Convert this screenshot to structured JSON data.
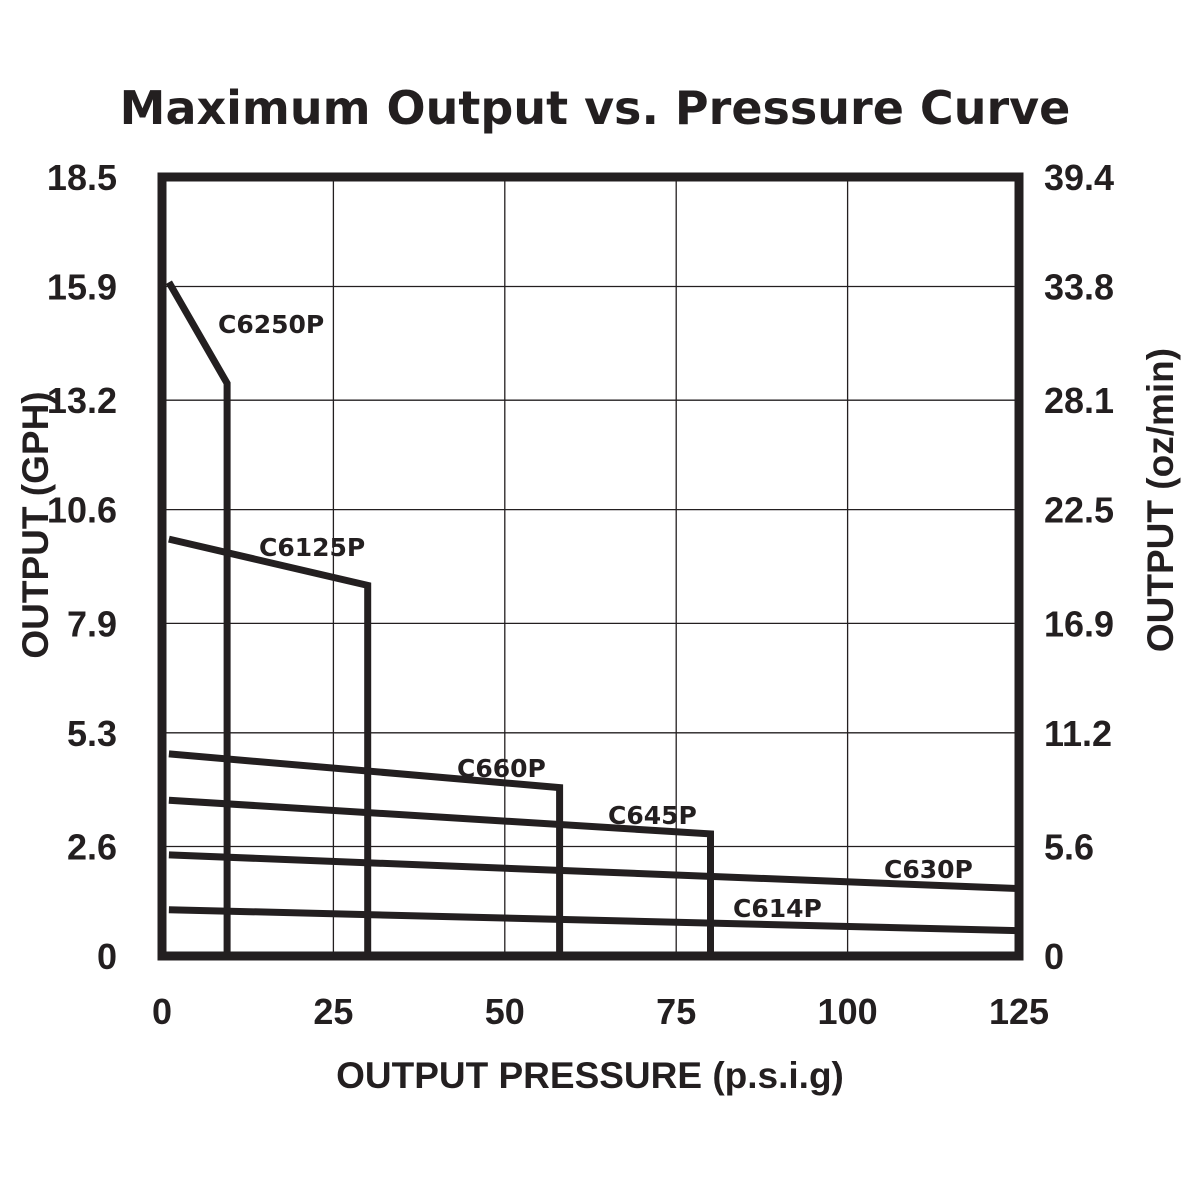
{
  "chart_data": {
    "type": "line",
    "title": "Maximum Output vs. Pressure Curve",
    "xlabel": "OUTPUT PRESSURE  (p.s.i.g)",
    "ylabel": "OUTPUT  (GPH)",
    "ylabel_right": "OUTPUT  (oz/min)",
    "xlim": [
      0,
      125
    ],
    "ylim": [
      0,
      18.5
    ],
    "x_ticks": [
      0,
      25,
      50,
      75,
      100,
      125
    ],
    "x_tick_labels": [
      "0",
      "25",
      "50",
      "75",
      "100",
      "125"
    ],
    "y_ticks": [
      0,
      2.6,
      5.3,
      7.9,
      10.6,
      13.2,
      15.9,
      18.5
    ],
    "y_tick_labels": [
      "0",
      "2.6",
      "5.3",
      "7.9",
      "10.6",
      "13.2",
      "15.9",
      "18.5"
    ],
    "y_right_tick_labels": [
      "0",
      "5.6",
      "11.2",
      "16.9",
      "22.5",
      "28.1",
      "33.8",
      "39.4"
    ],
    "grid": true,
    "series": [
      {
        "name": "C6250P",
        "x": [
          1,
          9.5,
          9.5
        ],
        "y": [
          16.0,
          13.6,
          0
        ]
      },
      {
        "name": "C6125P",
        "x": [
          1,
          30,
          30
        ],
        "y": [
          9.9,
          8.8,
          0
        ]
      },
      {
        "name": "C660P",
        "x": [
          1,
          58,
          58
        ],
        "y": [
          4.8,
          4.0,
          0
        ]
      },
      {
        "name": "C645P",
        "x": [
          1,
          80,
          80
        ],
        "y": [
          3.7,
          2.9,
          0
        ]
      },
      {
        "name": "C630P",
        "x": [
          1,
          125
        ],
        "y": [
          2.4,
          1.6
        ]
      },
      {
        "name": "C614P",
        "x": [
          1,
          125
        ],
        "y": [
          1.1,
          0.6
        ]
      }
    ]
  }
}
